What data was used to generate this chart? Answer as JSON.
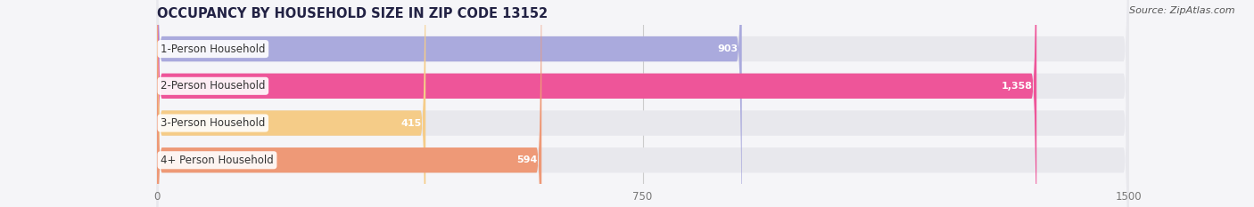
{
  "title": "OCCUPANCY BY HOUSEHOLD SIZE IN ZIP CODE 13152",
  "source": "Source: ZipAtlas.com",
  "categories": [
    "1-Person Household",
    "2-Person Household",
    "3-Person Household",
    "4+ Person Household"
  ],
  "values": [
    903,
    1358,
    415,
    594
  ],
  "bar_colors": [
    "#aaaadd",
    "#ee5599",
    "#f5cc88",
    "#ee9977"
  ],
  "bar_bg_color": "#e8e8ed",
  "xlim": [
    0,
    1500
  ],
  "xticks": [
    0,
    750,
    1500
  ],
  "figsize": [
    14.06,
    2.33
  ],
  "dpi": 100,
  "title_fontsize": 10.5,
  "source_fontsize": 8,
  "label_fontsize": 8.5,
  "value_fontsize": 8,
  "bar_height": 0.68,
  "bar_gap": 0.32,
  "background_color": "#f5f5f8"
}
